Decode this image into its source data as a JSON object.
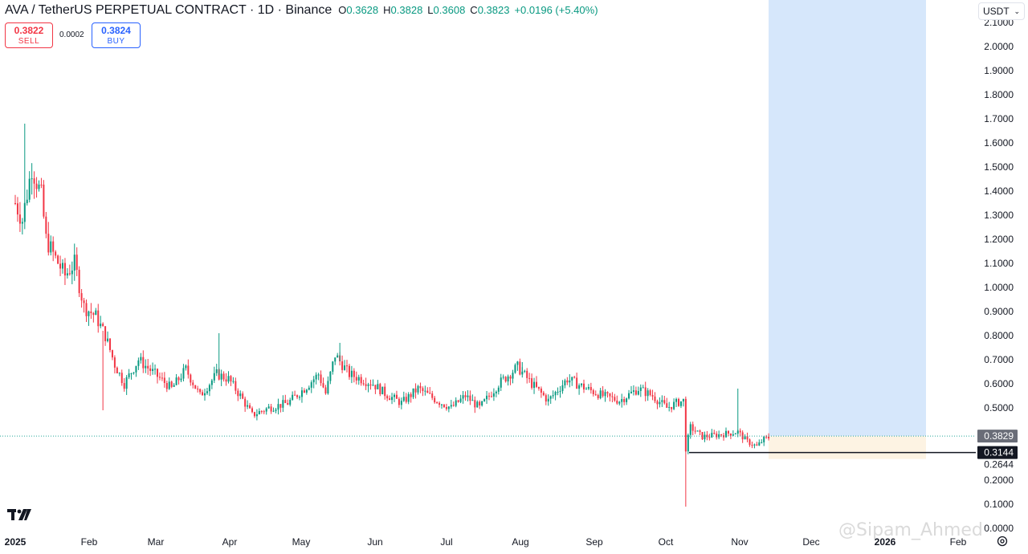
{
  "header": {
    "title": "AVA / TetherUS PERPETUAL CONTRACT · 1D · Binance",
    "ohlc": {
      "o_label": "O",
      "o": "0.3628",
      "h_label": "H",
      "h": "0.3828",
      "l_label": "L",
      "l": "0.3608",
      "c_label": "C",
      "c": "0.3823",
      "change": "+0.0196 (+5.40%)"
    }
  },
  "trade": {
    "sell_price": "0.3822",
    "sell_label": "SELL",
    "spread": "0.0002",
    "buy_price": "0.3824",
    "buy_label": "BUY"
  },
  "currency_select": {
    "value": "USDT"
  },
  "watermark": "@Sipam_Ahmed",
  "colors": {
    "up": "#089981",
    "down": "#f23645",
    "projection": "#d6e7fb",
    "risk": "#fdf3e3",
    "price_line": "#26a69a"
  },
  "icons": {
    "logo": "tradingview-logo",
    "settings": "settings-icon",
    "chevron": "chevron-down-icon"
  },
  "chart_data": {
    "type": "candlestick",
    "symbol": "AVA / TetherUS PERPETUAL CONTRACT",
    "timeframe": "1D",
    "exchange": "Binance",
    "ylim": [
      0.0,
      2.1
    ],
    "y_ticks": [
      "0.0000",
      "0.1000",
      "0.2000",
      "0.2644",
      "0.5000",
      "0.6000",
      "0.7000",
      "0.8000",
      "0.9000",
      "1.0000",
      "1.1000",
      "1.2000",
      "1.3000",
      "1.4000",
      "1.5000",
      "1.6000",
      "1.7000",
      "1.8000",
      "1.9000",
      "2.0000",
      "2.1000"
    ],
    "x_ticks": [
      "2025",
      "Feb",
      "Mar",
      "Apr",
      "May",
      "Jun",
      "Jul",
      "Aug",
      "Sep",
      "Oct",
      "Nov",
      "Dec",
      "2026",
      "Feb"
    ],
    "current_price": "0.3829",
    "horizontal_line": "0.3144",
    "price_path": [
      {
        "date": "2025-01-01",
        "price": 1.35
      },
      {
        "date": "2025-01-04",
        "price": 1.28
      },
      {
        "date": "2025-01-08",
        "price": 1.5
      },
      {
        "date": "2025-01-12",
        "price": 1.38
      },
      {
        "date": "2025-01-14",
        "price": 1.2
      },
      {
        "date": "2025-01-18",
        "price": 1.12
      },
      {
        "date": "2025-01-22",
        "price": 1.05
      },
      {
        "date": "2025-01-26",
        "price": 1.1
      },
      {
        "date": "2025-01-30",
        "price": 0.92
      },
      {
        "date": "2025-02-04",
        "price": 0.88
      },
      {
        "date": "2025-02-08",
        "price": 0.8
      },
      {
        "date": "2025-02-12",
        "price": 0.68
      },
      {
        "date": "2025-02-16",
        "price": 0.6
      },
      {
        "date": "2025-02-22",
        "price": 0.7
      },
      {
        "date": "2025-03-01",
        "price": 0.64
      },
      {
        "date": "2025-03-08",
        "price": 0.58
      },
      {
        "date": "2025-03-14",
        "price": 0.66
      },
      {
        "date": "2025-03-20",
        "price": 0.55
      },
      {
        "date": "2025-03-27",
        "price": 0.64
      },
      {
        "date": "2025-04-01",
        "price": 0.62
      },
      {
        "date": "2025-04-06",
        "price": 0.55
      },
      {
        "date": "2025-04-11",
        "price": 0.47
      },
      {
        "date": "2025-04-18",
        "price": 0.5
      },
      {
        "date": "2025-04-26",
        "price": 0.52
      },
      {
        "date": "2025-05-03",
        "price": 0.58
      },
      {
        "date": "2025-05-09",
        "price": 0.64
      },
      {
        "date": "2025-05-12",
        "price": 0.56
      },
      {
        "date": "2025-05-16",
        "price": 0.72
      },
      {
        "date": "2025-05-22",
        "price": 0.64
      },
      {
        "date": "2025-06-01",
        "price": 0.6
      },
      {
        "date": "2025-06-06",
        "price": 0.56
      },
      {
        "date": "2025-06-13",
        "price": 0.52
      },
      {
        "date": "2025-06-20",
        "price": 0.58
      },
      {
        "date": "2025-06-28",
        "price": 0.53
      },
      {
        "date": "2025-07-04",
        "price": 0.5
      },
      {
        "date": "2025-07-10",
        "price": 0.55
      },
      {
        "date": "2025-07-16",
        "price": 0.5
      },
      {
        "date": "2025-07-24",
        "price": 0.6
      },
      {
        "date": "2025-08-01",
        "price": 0.67
      },
      {
        "date": "2025-08-07",
        "price": 0.6
      },
      {
        "date": "2025-08-14",
        "price": 0.53
      },
      {
        "date": "2025-08-22",
        "price": 0.62
      },
      {
        "date": "2025-08-30",
        "price": 0.58
      },
      {
        "date": "2025-09-06",
        "price": 0.55
      },
      {
        "date": "2025-09-13",
        "price": 0.53
      },
      {
        "date": "2025-09-21",
        "price": 0.58
      },
      {
        "date": "2025-09-27",
        "price": 0.55
      },
      {
        "date": "2025-10-03",
        "price": 0.5
      },
      {
        "date": "2025-10-07",
        "price": 0.52
      },
      {
        "date": "2025-10-10",
        "price": 0.53
      },
      {
        "date": "2025-10-11",
        "price": 0.33
      },
      {
        "date": "2025-10-13",
        "price": 0.42
      },
      {
        "date": "2025-10-18",
        "price": 0.38
      },
      {
        "date": "2025-10-26",
        "price": 0.39
      },
      {
        "date": "2025-11-02",
        "price": 0.4
      },
      {
        "date": "2025-11-06",
        "price": 0.36
      },
      {
        "date": "2025-11-10",
        "price": 0.34
      },
      {
        "date": "2025-11-13",
        "price": 0.37
      },
      {
        "date": "2025-11-16",
        "price": 0.38
      }
    ],
    "spikes": [
      {
        "date": "2025-01-05",
        "high": 1.68
      },
      {
        "date": "2025-02-07",
        "low": 0.49
      },
      {
        "date": "2025-03-28",
        "high": 0.81
      },
      {
        "date": "2025-05-18",
        "high": 0.77
      },
      {
        "date": "2025-08-03",
        "high": 0.69
      },
      {
        "date": "2025-10-11",
        "low": 0.09
      },
      {
        "date": "2025-11-02",
        "high": 0.58
      }
    ]
  }
}
